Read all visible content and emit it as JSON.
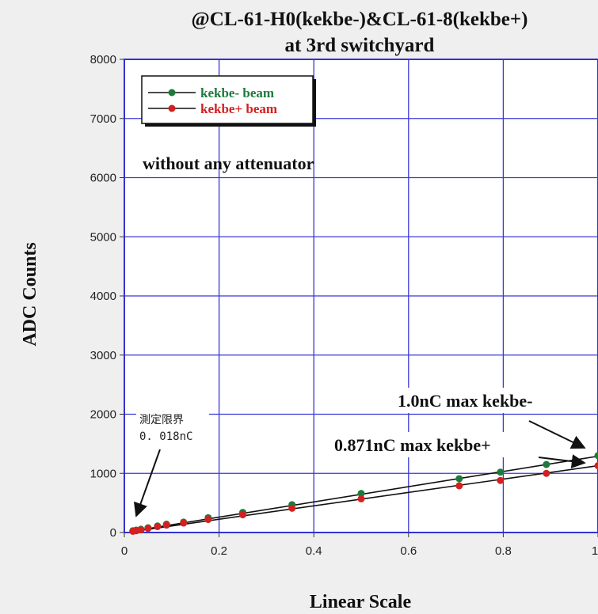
{
  "chart_data": {
    "type": "line",
    "title": "@CL-61-H0(kekbe-)&CL-61-8(kekbe+)",
    "subtitle": "at 3rd switchyard",
    "xlabel": "Linear Scale",
    "ylabel": "ADC Counts",
    "xlim": [
      0,
      1
    ],
    "ylim": [
      0,
      8000
    ],
    "x_ticks": [
      0,
      0.2,
      0.4,
      0.6,
      0.8,
      1
    ],
    "x_tick_labels": [
      "0",
      "0.2",
      "0.4",
      "0.6",
      "0.8",
      "1"
    ],
    "y_ticks": [
      0,
      1000,
      2000,
      3000,
      4000,
      5000,
      6000,
      7000,
      8000
    ],
    "y_tick_labels": [
      "0",
      "1000",
      "2000",
      "3000",
      "4000",
      "5000",
      "6000",
      "7000",
      "8000"
    ],
    "grid": true,
    "legend_position": "top-left",
    "series": [
      {
        "name": "kekbe- beam",
        "color": "#1e7a3c",
        "x": [
          0.018,
          0.025,
          0.035,
          0.05,
          0.07,
          0.089,
          0.125,
          0.177,
          0.25,
          0.354,
          0.5,
          0.707,
          0.794,
          0.891,
          1.0
        ],
        "y": [
          30,
          40,
          55,
          80,
          110,
          140,
          175,
          250,
          340,
          470,
          660,
          910,
          1020,
          1150,
          1300
        ]
      },
      {
        "name": "kekbe+ beam",
        "color": "#d42020",
        "x": [
          0.018,
          0.025,
          0.035,
          0.05,
          0.07,
          0.089,
          0.125,
          0.177,
          0.25,
          0.354,
          0.5,
          0.707,
          0.794,
          0.891,
          1.0
        ],
        "y": [
          20,
          30,
          45,
          70,
          100,
          125,
          160,
          220,
          300,
          410,
          570,
          790,
          880,
          1000,
          1130
        ]
      }
    ],
    "fit_lines": [
      {
        "series": "kekbe- beam",
        "x": [
          0.018,
          1.0
        ],
        "y": [
          25,
          1290
        ]
      },
      {
        "series": "kekbe+ beam",
        "x": [
          0.018,
          1.0
        ],
        "y": [
          18,
          1130
        ]
      }
    ],
    "annotations": {
      "note": "without any attenuator",
      "limit_line1": "測定限界",
      "limit_line2": "0. 018nC",
      "max_minus": "1.0nC max kekbe-",
      "max_plus": "0.871nC max kekbe+"
    }
  }
}
